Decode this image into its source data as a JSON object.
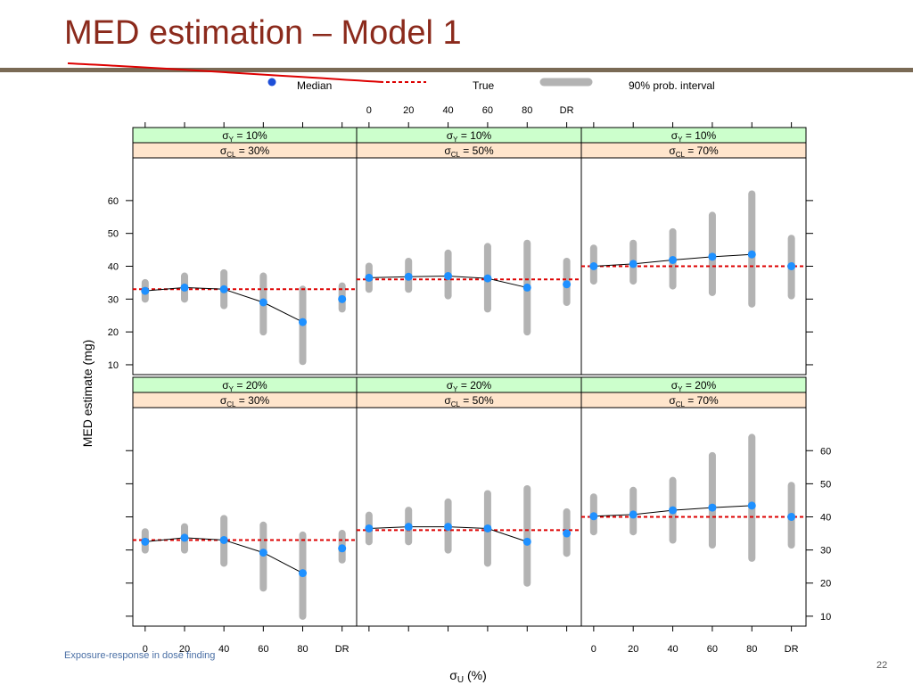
{
  "slide": {
    "title": "MED estimation – Model 1",
    "footer": "Exposure-response in dose finding",
    "page_number": "22"
  },
  "colors": {
    "title": "#8b2a1c",
    "rule": "#7a6a55",
    "median_point": "#1e90ff",
    "median_line": "#000000",
    "true_line": "#dd0000",
    "interval": "#b3b3b3",
    "strip_top": "#ccffcc",
    "strip_bottom": "#ffe5cc"
  },
  "chart_data": {
    "type": "line",
    "layout": "lattice 3 columns x 2 rows",
    "legend": {
      "position": "top",
      "entries": [
        {
          "label": "Median",
          "kind": "point"
        },
        {
          "label": "True",
          "kind": "dashed-line"
        },
        {
          "label": "90% prob. interval",
          "kind": "thick-bar"
        }
      ]
    },
    "xlabel_symbol": "σ",
    "xlabel_sub": "U",
    "xlabel_tail": " (%)",
    "ylabel": "MED estimate (mg)",
    "x_categories": [
      "0",
      "20",
      "40",
      "60",
      "80",
      "DR"
    ],
    "y_ticks": [
      10,
      20,
      30,
      40,
      50,
      60
    ],
    "ylim": [
      7,
      73
    ],
    "strip_symbol": "σ",
    "strip_eq": " =  ",
    "panels": [
      {
        "sy_sub": "Y",
        "sy_val": "10%",
        "scl_sub": "CL",
        "scl_val": "30%",
        "true": 33,
        "median": [
          32.5,
          33.5,
          33,
          29,
          23,
          30
        ],
        "lower": [
          30,
          30,
          28,
          20,
          11,
          27
        ],
        "upper": [
          35,
          37,
          38,
          37,
          33,
          34
        ]
      },
      {
        "sy_sub": "Y",
        "sy_val": "10%",
        "scl_sub": "CL",
        "scl_val": "50%",
        "true": 36,
        "median": [
          36.5,
          36.8,
          37,
          36.3,
          33.5,
          34.5
        ],
        "lower": [
          33,
          33,
          31,
          27,
          20,
          29
        ],
        "upper": [
          40,
          41.5,
          44,
          46,
          47,
          41.5
        ]
      },
      {
        "sy_sub": "Y",
        "sy_val": "10%",
        "scl_sub": "CL",
        "scl_val": "70%",
        "true": 40,
        "median": [
          40,
          40.7,
          41.9,
          42.9,
          43.6,
          40
        ],
        "lower": [
          35.5,
          35.5,
          34,
          32,
          28.5,
          31
        ],
        "upper": [
          45.5,
          47,
          50.5,
          55.5,
          62,
          48.5
        ]
      },
      {
        "sy_sub": "Y",
        "sy_val": "20%",
        "scl_sub": "CL",
        "scl_val": "30%",
        "true": 33,
        "median": [
          32.5,
          33.7,
          33,
          29.2,
          23,
          30.5
        ],
        "lower": [
          30,
          30,
          26,
          18.5,
          10,
          27
        ],
        "upper": [
          35.5,
          37,
          39.5,
          37.5,
          34.5,
          35
        ]
      },
      {
        "sy_sub": "Y",
        "sy_val": "20%",
        "scl_sub": "CL",
        "scl_val": "50%",
        "true": 36,
        "median": [
          36.5,
          37,
          37,
          36.5,
          32.5,
          35
        ],
        "lower": [
          32.5,
          32.5,
          30,
          26,
          20,
          29
        ],
        "upper": [
          40.5,
          42,
          44.5,
          47,
          48.5,
          41.5
        ]
      },
      {
        "sy_sub": "Y",
        "sy_val": "20%",
        "scl_sub": "CL",
        "scl_val": "70%",
        "true": 40,
        "median": [
          40.2,
          40.7,
          42,
          42.8,
          43.4,
          40
        ],
        "lower": [
          35.5,
          35.5,
          33,
          31.5,
          27.5,
          31.5
        ],
        "upper": [
          46,
          48,
          51,
          58.5,
          64,
          49.5
        ]
      }
    ]
  }
}
